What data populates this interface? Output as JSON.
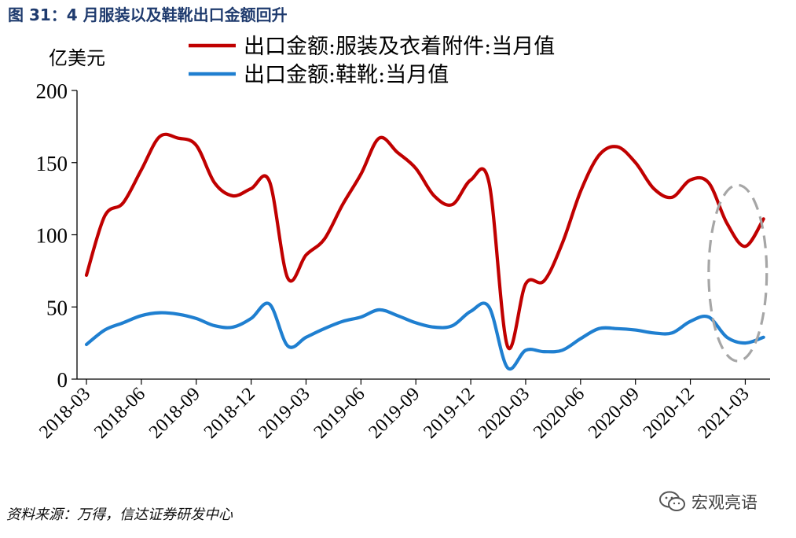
{
  "figure_title": "图 31：4 月服装以及鞋靴出口金额回升",
  "source_note": "资料来源：万得，信达证券研发中心",
  "watermark": "宏观亮语",
  "chart_data": {
    "type": "line",
    "ylabel": "亿美元",
    "ylim": [
      0,
      200
    ],
    "yticks": [
      0,
      50,
      100,
      150,
      200
    ],
    "xticks": [
      "2018-03",
      "2018-06",
      "2018-09",
      "2018-12",
      "2019-03",
      "2019-06",
      "2019-09",
      "2019-12",
      "2020-03",
      "2020-06",
      "2020-09",
      "2020-12",
      "2021-03"
    ],
    "x": [
      "2018-03",
      "2018-04",
      "2018-05",
      "2018-06",
      "2018-07",
      "2018-08",
      "2018-09",
      "2018-10",
      "2018-11",
      "2018-12",
      "2019-01",
      "2019-02",
      "2019-03",
      "2019-04",
      "2019-05",
      "2019-06",
      "2019-07",
      "2019-08",
      "2019-09",
      "2019-10",
      "2019-11",
      "2019-12",
      "2020-01",
      "2020-02",
      "2020-03",
      "2020-04",
      "2020-05",
      "2020-06",
      "2020-07",
      "2020-08",
      "2020-09",
      "2020-10",
      "2020-11",
      "2020-12",
      "2021-01",
      "2021-02",
      "2021-03",
      "2021-04"
    ],
    "series": [
      {
        "name": "出口金额:服装及衣着附件:当月值",
        "color": "#c00000",
        "values": [
          72,
          113,
          122,
          145,
          168,
          167,
          162,
          136,
          127,
          132,
          137,
          70,
          86,
          97,
          121,
          142,
          167,
          157,
          146,
          127,
          121,
          138,
          136,
          23,
          66,
          68,
          94,
          130,
          155,
          161,
          150,
          132,
          126,
          138,
          136,
          108,
          92,
          111
        ]
      },
      {
        "name": "出口金额:鞋靴:当月值",
        "color": "#1f7fd0",
        "values": [
          24,
          34,
          39,
          44,
          46,
          45,
          42,
          37,
          36,
          42,
          52,
          23,
          29,
          35,
          40,
          43,
          48,
          44,
          39,
          36,
          37,
          47,
          50,
          8,
          20,
          19,
          20,
          28,
          35,
          35,
          34,
          32,
          32,
          40,
          43,
          29,
          25,
          29
        ]
      }
    ],
    "annotation": {
      "type": "dashed-ellipse",
      "color": "#a6a6a6",
      "around": [
        "2021-01",
        "2021-04"
      ]
    },
    "legend_position": "top-center",
    "grid": false
  }
}
